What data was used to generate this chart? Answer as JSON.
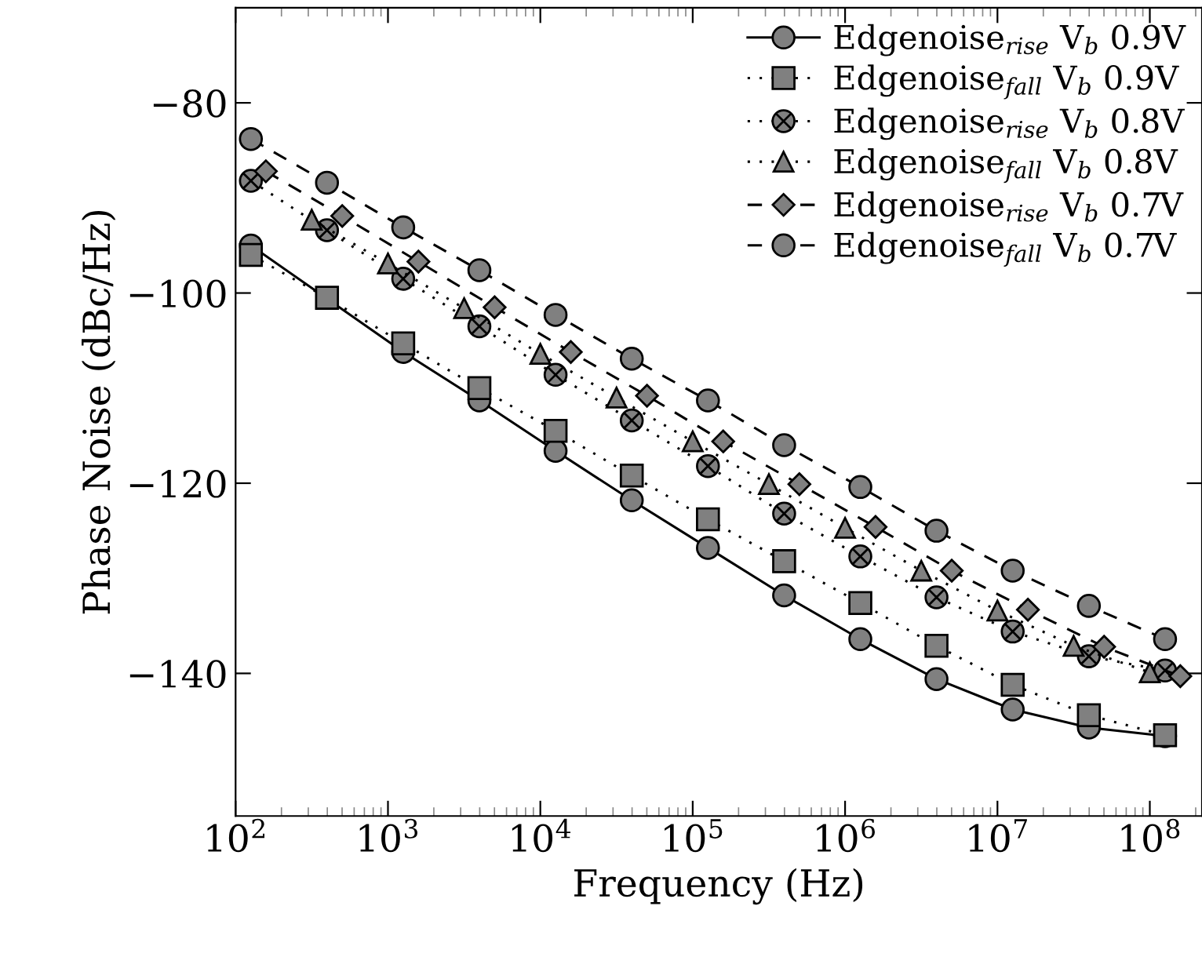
{
  "chart_data": {
    "type": "line",
    "xlabel": "Frequency (Hz)",
    "ylabel": "Phase Noise (dBc/Hz)",
    "log": "x",
    "xlim": [
      100,
      220000000
    ],
    "xticks": [
      {
        "value": 100,
        "label": "10$^{2}$"
      },
      {
        "value": 1000,
        "label": "10$^{3}$"
      },
      {
        "value": 10000,
        "label": "10$^{4}$"
      },
      {
        "value": 100000,
        "label": "10$^{5}$"
      },
      {
        "value": 1000000,
        "label": "10$^{6}$"
      },
      {
        "value": 10000000,
        "label": "10$^{7}$"
      },
      {
        "value": 100000000,
        "label": "10$^{8}$"
      }
    ],
    "ylim": [
      -155,
      -70
    ],
    "yticks": [
      {
        "value": -80,
        "label": "−80"
      },
      {
        "value": -100,
        "label": "−100"
      },
      {
        "value": -120,
        "label": "−120"
      },
      {
        "value": -140,
        "label": "−140"
      }
    ],
    "grid": false,
    "legend": "top right",
    "series": [
      {
        "name": "Edgenoise$_{rise}$ V$_{b}$ 0.9V",
        "color": "#808080",
        "marker": "circle",
        "line_style": "solid",
        "x": [
          126,
          1259,
          3981,
          12589,
          39811,
          125893,
          398107,
          1258925,
          3981072,
          12589254,
          39810717,
          125892541
        ],
        "values": [
          -95,
          -106.2,
          -111.3,
          -116.6,
          -121.8,
          -126.8,
          -131.8,
          -136.4,
          -140.6,
          -143.8,
          -145.7,
          -146.6
        ]
      },
      {
        "name": "Edgenoise$_{fall}$ V$_{b}$ 0.9V",
        "color": "#808080",
        "marker": "square",
        "line_style": "dotted",
        "x": [
          126,
          398,
          1259,
          3981,
          12589,
          39811,
          125893,
          398107,
          1258925,
          3981072,
          12589254,
          39810717,
          125892541
        ],
        "values": [
          -96,
          -100.5,
          -105.3,
          -110,
          -114.5,
          -119.2,
          -123.8,
          -128.2,
          -132.6,
          -137.1,
          -141.2,
          -144.4,
          -146.5
        ]
      },
      {
        "name": "Edgenoise$_{rise}$ V$_{b}$ 0.8V",
        "color": "#808080",
        "marker": "cross",
        "line_style": "dotted",
        "x": [
          126,
          398,
          1259,
          3981,
          12589,
          39811,
          125893,
          398107,
          1258925,
          3981072,
          12589254,
          39810717,
          125892541
        ],
        "values": [
          -88.2,
          -93.4,
          -98.5,
          -103.5,
          -108.6,
          -113.4,
          -118.2,
          -123.2,
          -127.7,
          -132,
          -135.6,
          -138.2,
          -139.7
        ]
      },
      {
        "name": "Edgenoise$_{fall}$ V$_{b}$ 0.8V",
        "color": "#808080",
        "marker": "triangle",
        "line_style": "dotted",
        "x": [
          316,
          1000,
          3162,
          10000,
          31623,
          100000,
          316228,
          1000000,
          3162278,
          10000000,
          31622777,
          100000000
        ],
        "values": [
          -92.3,
          -96.9,
          -101.6,
          -106.4,
          -111,
          -115.6,
          -120.1,
          -124.7,
          -129.2,
          -133.4,
          -137.1,
          -139.9
        ]
      },
      {
        "name": "Edgenoise$_{rise}$ V$_{b}$ 0.7V",
        "color": "#808080",
        "marker": "diamond",
        "line_style": "dashed",
        "x": [
          158,
          501,
          1585,
          5012,
          15849,
          50119,
          158489,
          501187,
          1584893,
          5011872,
          15848932,
          50118723,
          158489319
        ],
        "values": [
          -87.2,
          -91.9,
          -96.7,
          -101.5,
          -106.2,
          -110.8,
          -115.6,
          -120.1,
          -124.6,
          -129.2,
          -133.3,
          -137.2,
          -140.3
        ]
      },
      {
        "name": "Edgenoise$_{fall}$ V$_{b}$ 0.7V",
        "color": "#808080",
        "marker": "circle",
        "line_style": "dashed",
        "x": [
          126,
          398,
          1259,
          3981,
          12589,
          39811,
          125893,
          398107,
          1258925,
          3981072,
          12589254,
          39810717,
          125892541
        ],
        "values": [
          -83.8,
          -88.4,
          -93.1,
          -97.6,
          -102.3,
          -106.9,
          -111.3,
          -116,
          -120.4,
          -125,
          -129.2,
          -132.9,
          -136.4
        ]
      }
    ]
  }
}
